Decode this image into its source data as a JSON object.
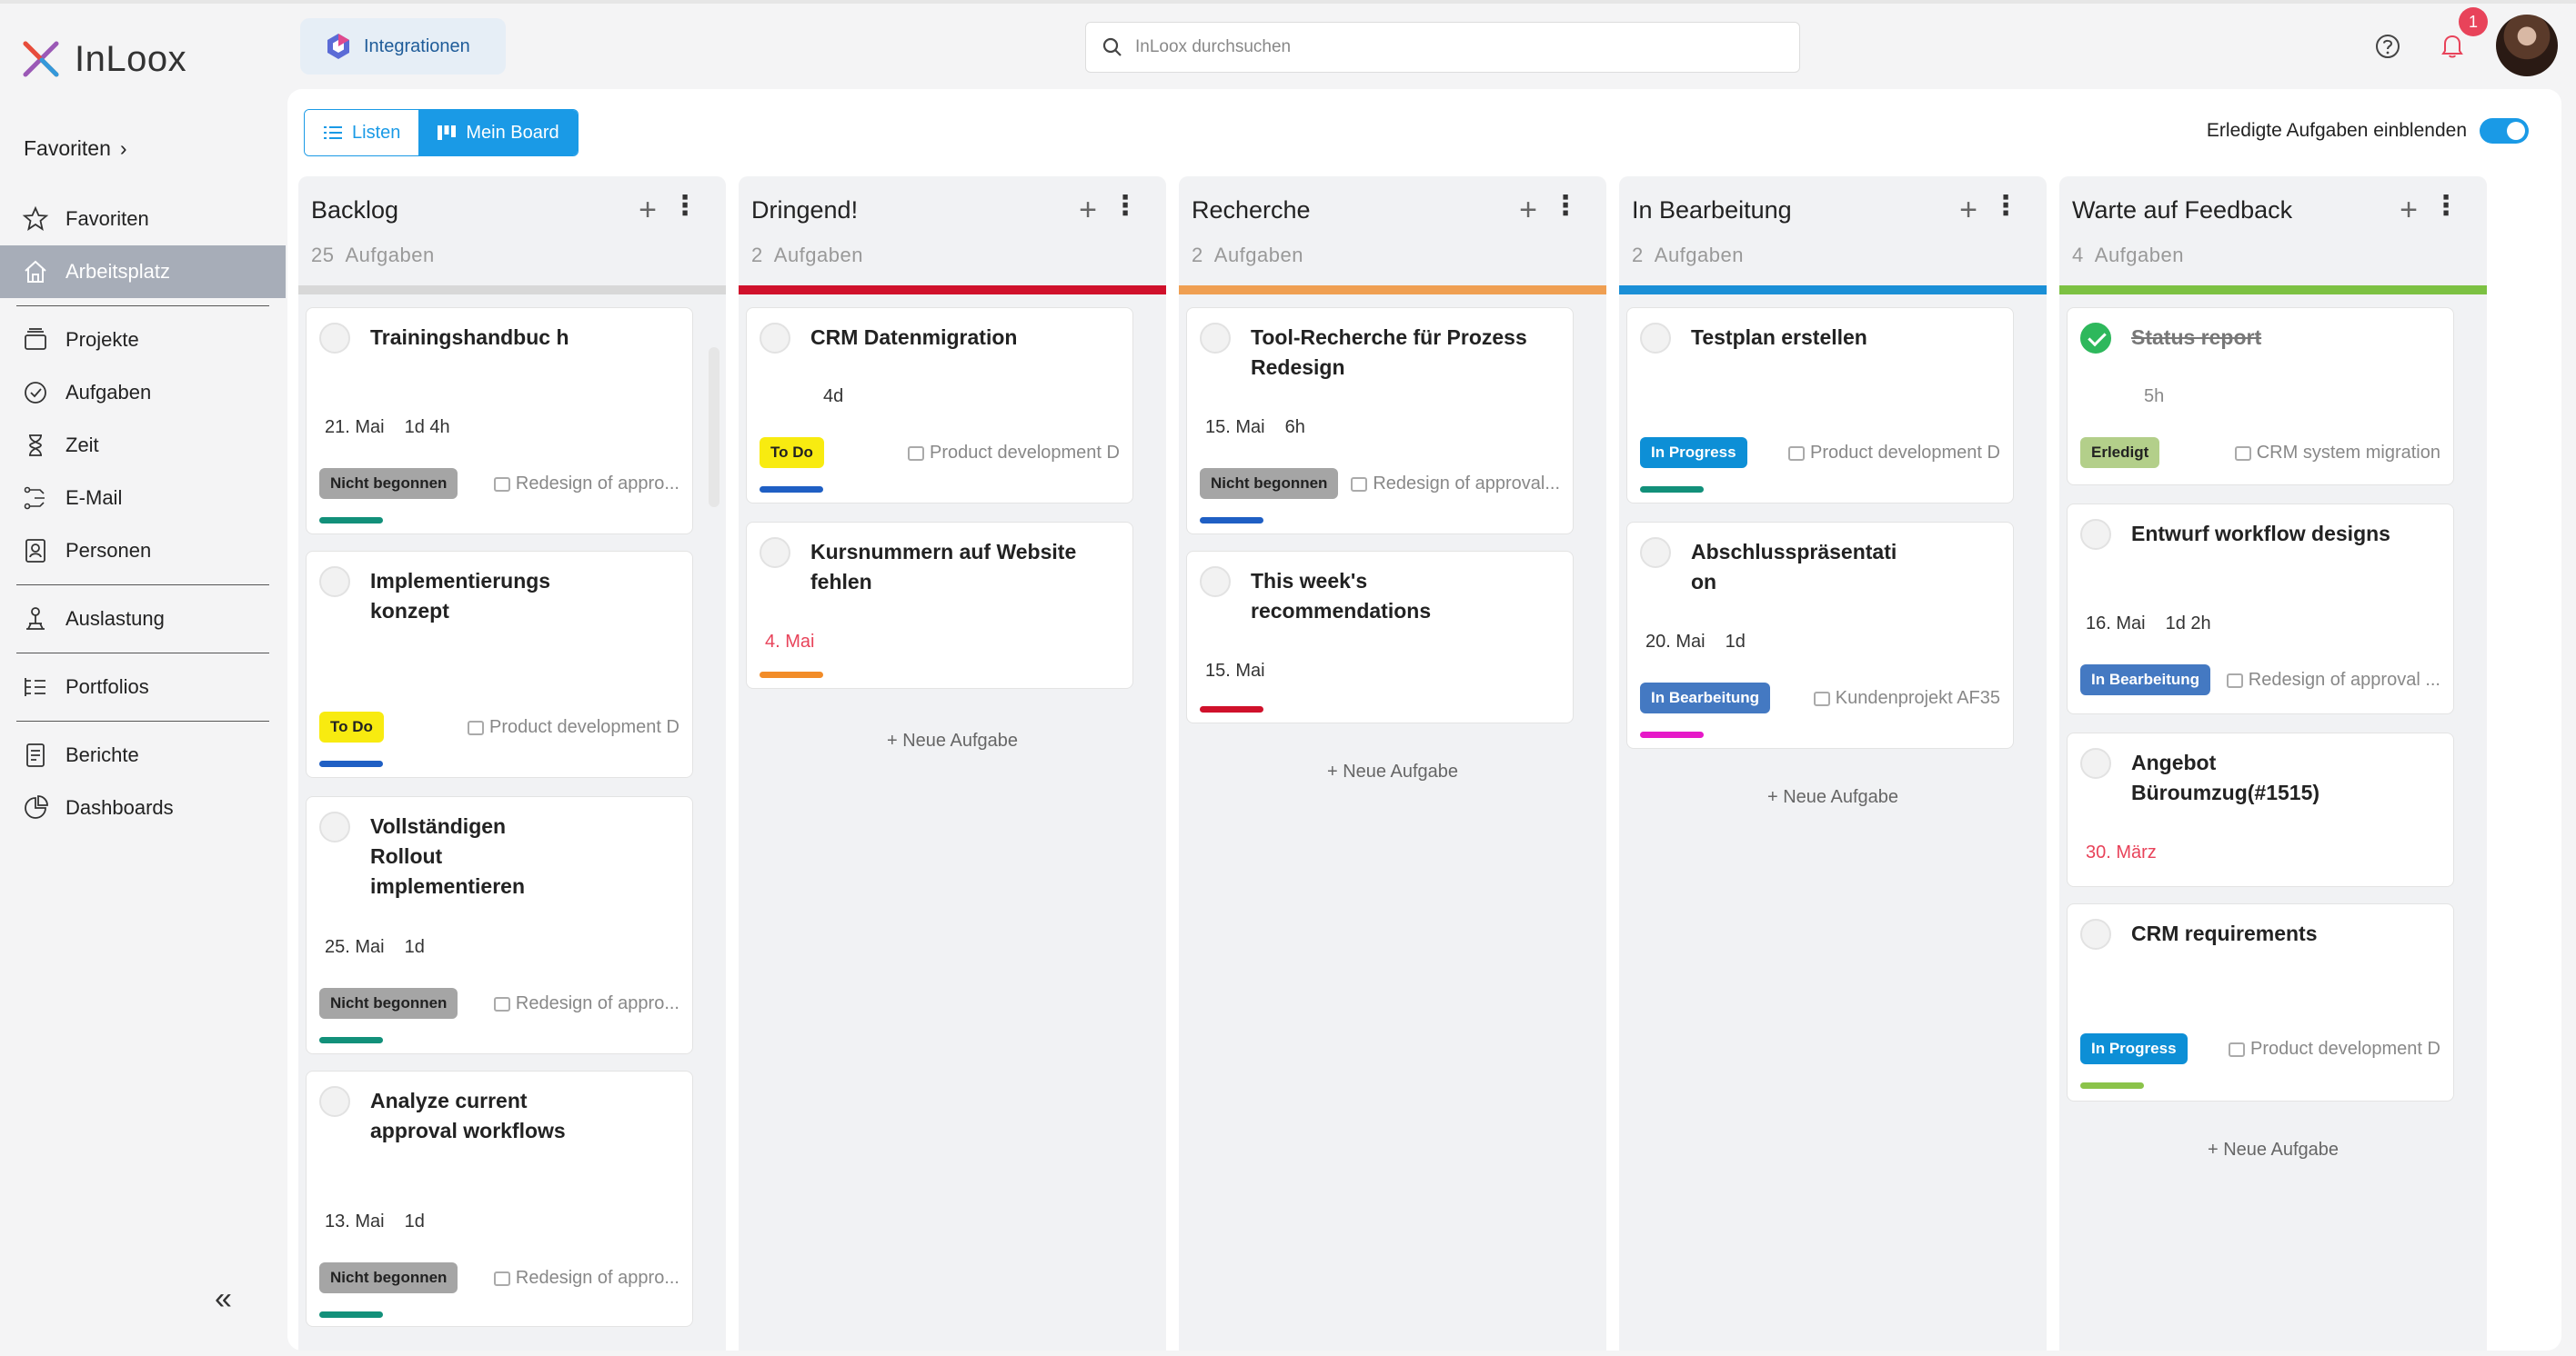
{
  "app": {
    "name": "InLoox"
  },
  "sidebar": {
    "favorites_header": "Favoriten",
    "items": [
      {
        "label": "Favoriten",
        "icon": "star-icon"
      },
      {
        "label": "Arbeitsplatz",
        "icon": "home-icon",
        "active": true
      },
      {
        "label": "Projekte",
        "icon": "folders-icon"
      },
      {
        "label": "Aufgaben",
        "icon": "check-circle-icon"
      },
      {
        "label": "Zeit",
        "icon": "hourglass-icon"
      },
      {
        "label": "E-Mail",
        "icon": "email-icon"
      },
      {
        "label": "Personen",
        "icon": "contacts-icon"
      },
      {
        "label": "Auslastung",
        "icon": "workload-icon"
      },
      {
        "label": "Portfolios",
        "icon": "portfolio-icon"
      },
      {
        "label": "Berichte",
        "icon": "report-icon"
      },
      {
        "label": "Dashboards",
        "icon": "dashboard-icon"
      }
    ],
    "collapse": "«"
  },
  "header": {
    "integrations_label": "Integrationen",
    "search_placeholder": "InLoox durchsuchen",
    "notification_count": "1"
  },
  "toolbar": {
    "list_label": "Listen",
    "board_label": "Mein Board",
    "show_done_label": "Erledigte Aufgaben einblenden",
    "show_done_on": true
  },
  "new_task_label": "Neue Aufgabe",
  "colors": {
    "accent": "#1a9ae6",
    "backlog": "#d8d8d8",
    "urgent": "#d0112b",
    "research": "#ef9f52",
    "in_progress": "#1a8fd6",
    "feedback": "#7cc142"
  },
  "columns": [
    {
      "title": "Backlog",
      "count": "25",
      "count_label": "Aufgaben",
      "cards": [
        {
          "title": "Trainingshandbuc h",
          "date": "21. Mai",
          "duration": "1d 4h",
          "status": "Nicht begonnen",
          "project": "Redesign of appro..."
        },
        {
          "title": "Implementierungs konzept",
          "status": "To Do",
          "project": "Product development D"
        },
        {
          "title": "Vollständigen Rollout implementieren",
          "date": "25. Mai",
          "duration": "1d",
          "status": "Nicht begonnen",
          "project": "Redesign of appro..."
        },
        {
          "title": "Analyze current approval workflows",
          "date": "13. Mai",
          "duration": "1d",
          "status": "Nicht begonnen",
          "project": "Redesign of appro..."
        }
      ]
    },
    {
      "title": "Dringend!",
      "count": "2",
      "count_label": "Aufgaben",
      "cards": [
        {
          "title": "CRM Datenmigration",
          "duration": "4d",
          "status": "To Do",
          "project": "Product development D"
        },
        {
          "title": "Kursnummern auf Website fehlen",
          "date": "4. Mai"
        }
      ]
    },
    {
      "title": "Recherche",
      "count": "2",
      "count_label": "Aufgaben",
      "cards": [
        {
          "title": "Tool-Recherche für Prozess Redesign",
          "date": "15. Mai",
          "duration": "6h",
          "status": "Nicht begonnen",
          "project": "Redesign of approval..."
        },
        {
          "title": "This week's recommendations",
          "date": "15. Mai"
        }
      ]
    },
    {
      "title": "In Bearbeitung",
      "count": "2",
      "count_label": "Aufgaben",
      "cards": [
        {
          "title": "Testplan erstellen",
          "status": "In Progress",
          "project": "Product development D"
        },
        {
          "title": "Abschlusspräsentati on",
          "date": "20. Mai",
          "duration": "1d",
          "status": "In Bearbeitung",
          "project": "Kundenprojekt AF35"
        }
      ]
    },
    {
      "title": "Warte auf Feedback",
      "count": "4",
      "count_label": "Aufgaben",
      "cards": [
        {
          "title": "Status report",
          "duration": "5h",
          "status": "Erledigt",
          "project": "CRM system migration",
          "done": true
        },
        {
          "title": "Entwurf workflow designs",
          "date": "16. Mai",
          "duration": "1d 2h",
          "status": "In Bearbeitung",
          "project": "Redesign of approval ..."
        },
        {
          "title": "Angebot Büroumzug(#1515)",
          "date": "30. März"
        },
        {
          "title": "CRM requirements",
          "status": "In Progress",
          "project": "Product development D"
        }
      ]
    }
  ]
}
